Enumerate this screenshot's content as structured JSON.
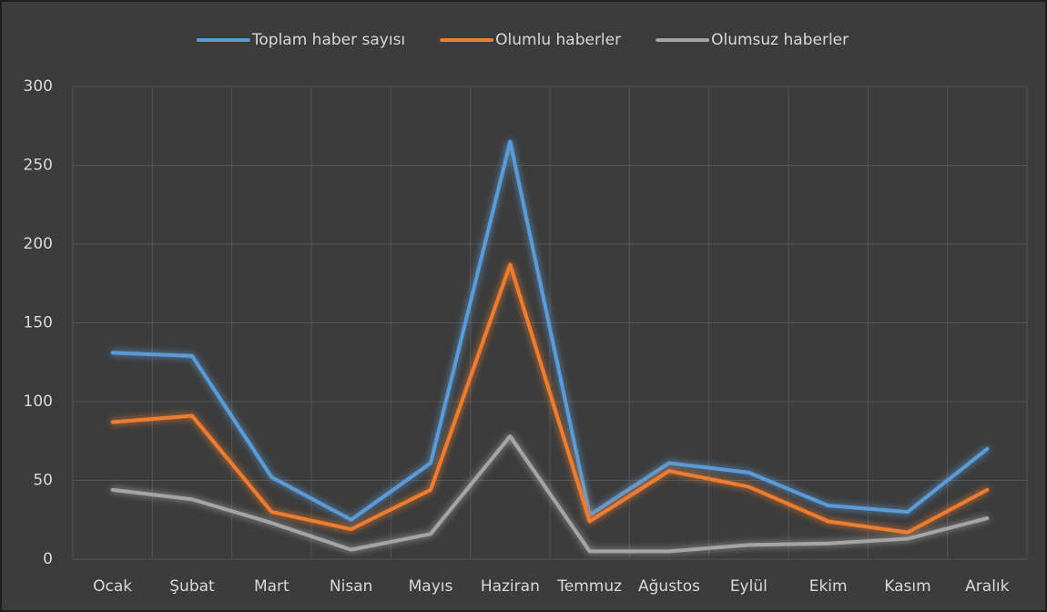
{
  "chart_data": {
    "type": "line",
    "categories": [
      "Ocak",
      "Şubat",
      "Mart",
      "Nisan",
      "Mayıs",
      "Haziran",
      "Temmuz",
      "Ağustos",
      "Eylül",
      "Ekim",
      "Kasım",
      "Aralık"
    ],
    "series": [
      {
        "name": "Toplam haber sayısı",
        "color": "#5b9bd5",
        "values": [
          131,
          129,
          52,
          25,
          61,
          265,
          28,
          61,
          55,
          34,
          30,
          70
        ]
      },
      {
        "name": "Olumlu haberler",
        "color": "#ed7d31",
        "values": [
          87,
          91,
          30,
          19,
          44,
          187,
          24,
          56,
          46,
          24,
          17,
          44
        ]
      },
      {
        "name": "Olumsuz haberler",
        "color": "#a5a5a5",
        "values": [
          44,
          38,
          23,
          6,
          16,
          78,
          5,
          5,
          9,
          10,
          13,
          26
        ]
      }
    ],
    "ylim": [
      0,
      300
    ],
    "yticks": [
      0,
      50,
      100,
      150,
      200,
      250,
      300
    ],
    "grid": true,
    "legend": "top"
  }
}
